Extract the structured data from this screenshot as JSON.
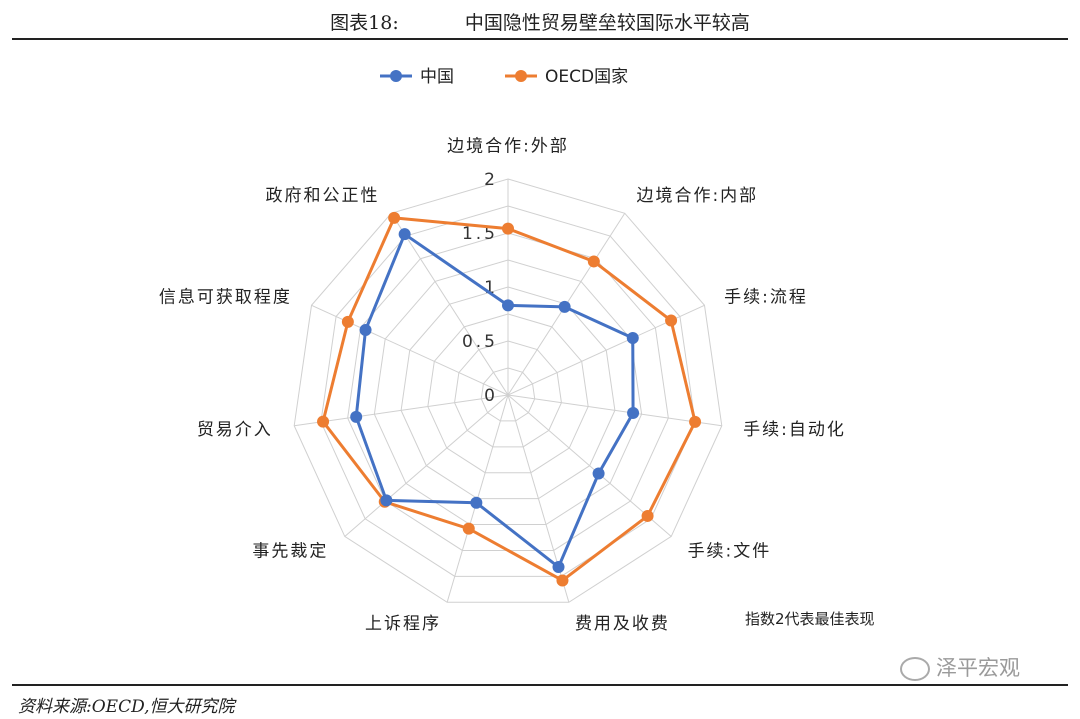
{
  "header": {
    "figure_number": "图表18:",
    "figure_title": "中国隐性贸易壁垒较国际水平较高"
  },
  "footer": {
    "source": "资料来源:OECD,恒大研究院",
    "watermark": "泽平宏观"
  },
  "note": "指数2代表最佳表现",
  "colors": {
    "china": "#4472c4",
    "oecd": "#ed7d31",
    "grid": "#d0d0d0"
  },
  "chart_data": {
    "type": "radar",
    "categories": [
      "边境合作:外部",
      "边境合作:内部",
      "手续:流程",
      "手续:自动化",
      "手续:文件",
      "费用及收费",
      "上诉程序",
      "事先裁定",
      "贸易介入",
      "信息可获取程度",
      "政府和公正性"
    ],
    "series": [
      {
        "name": "中国",
        "values": [
          0.83,
          0.97,
          1.27,
          1.17,
          1.11,
          1.66,
          1.04,
          1.49,
          1.42,
          1.45,
          1.77
        ]
      },
      {
        "name": "OECD国家",
        "values": [
          1.54,
          1.47,
          1.66,
          1.75,
          1.71,
          1.79,
          1.29,
          1.51,
          1.73,
          1.63,
          1.95
        ]
      }
    ],
    "r_ticks": [
      "0",
      "0.5",
      "1",
      "1.5",
      "2"
    ],
    "r_range": [
      0,
      2
    ],
    "legend_position": "top-left",
    "grid": true
  }
}
